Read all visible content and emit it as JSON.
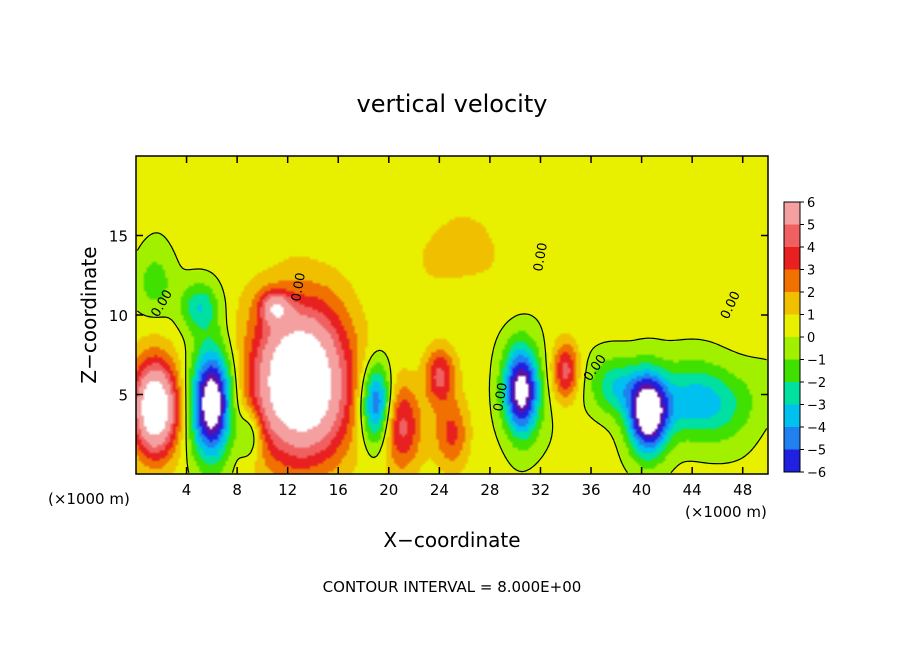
{
  "chart_data": {
    "type": "heatmap",
    "title": "vertical velocity",
    "xlabel": "X−coordinate",
    "ylabel": "Z−coordinate",
    "x_unit_left": "(×1000 m)",
    "x_unit_right": "(×1000 m)",
    "xlim": [
      0,
      50
    ],
    "ylim": [
      0,
      20
    ],
    "x_ticks": [
      4,
      8,
      12,
      16,
      20,
      24,
      28,
      32,
      36,
      40,
      44,
      48
    ],
    "y_ticks": [
      5,
      10,
      15
    ],
    "colorbar": {
      "levels": [
        6,
        5,
        4,
        3,
        2,
        1,
        0,
        -1,
        -2,
        -3,
        -4,
        -5,
        -6
      ],
      "labels": [
        "6",
        "5",
        "4",
        "3",
        "2",
        "1",
        "0",
        "−1",
        "−2",
        "−3",
        "−4",
        "−5",
        "−6"
      ],
      "colors": [
        "#f4a0a0",
        "#f06060",
        "#e82020",
        "#f07000",
        "#f0c000",
        "#e8f000",
        "#a0f000",
        "#40e000",
        "#00e0a0",
        "#00c0f0",
        "#2080f0",
        "#2020e0",
        "#6010a0"
      ]
    },
    "contour_labels": [
      "0.00",
      "0.00",
      "0.00",
      "0.00",
      "0.00"
    ],
    "footer": "CONTOUR INTERVAL = 8.000E+00",
    "features": [
      {
        "kind": "updraft",
        "x": 1.5,
        "z": 4.2,
        "rx": 1.8,
        "rz": 3.0,
        "w": 9
      },
      {
        "kind": "downdraft",
        "x": 6.0,
        "z": 4.5,
        "rx": 1.6,
        "rz": 3.4,
        "w": -9
      },
      {
        "kind": "updraft",
        "x": 13.0,
        "z": 5.8,
        "rx": 3.8,
        "rz": 4.8,
        "w": 10
      },
      {
        "kind": "downdraft",
        "x": 9.0,
        "z": 2.5,
        "rx": 1.0,
        "rz": 1.6,
        "w": -3
      },
      {
        "kind": "updraft",
        "x": 11.0,
        "z": 10.5,
        "rx": 1.2,
        "rz": 1.0,
        "w": 4
      },
      {
        "kind": "downdraft",
        "x": 19.0,
        "z": 4.5,
        "rx": 1.2,
        "rz": 2.5,
        "w": -6
      },
      {
        "kind": "updraft",
        "x": 21.0,
        "z": 3.0,
        "rx": 1.5,
        "rz": 2.8,
        "w": 4
      },
      {
        "kind": "updraft",
        "x": 24.0,
        "z": 6.2,
        "rx": 1.2,
        "rz": 1.8,
        "w": 4
      },
      {
        "kind": "updraft",
        "x": 25.0,
        "z": 2.5,
        "rx": 1.4,
        "rz": 2.2,
        "w": 3
      },
      {
        "kind": "downdraft",
        "x": 30.5,
        "z": 5.2,
        "rx": 1.4,
        "rz": 2.8,
        "w": -8
      },
      {
        "kind": "updraft",
        "x": 34.0,
        "z": 6.5,
        "rx": 1.0,
        "rz": 1.8,
        "w": 4
      },
      {
        "kind": "downdraft",
        "x": 5.0,
        "z": 10.5,
        "rx": 1.5,
        "rz": 1.5,
        "w": -3
      },
      {
        "kind": "downdraft",
        "x": 40.5,
        "z": 3.8,
        "rx": 1.5,
        "rz": 2.5,
        "w": -8
      },
      {
        "kind": "downdraft",
        "x": 44.5,
        "z": 4.5,
        "rx": 4.0,
        "rz": 2.4,
        "w": -4
      },
      {
        "kind": "downdraft",
        "x": 38.0,
        "z": 5.5,
        "rx": 2.0,
        "rz": 1.8,
        "w": -3
      },
      {
        "kind": "downdraft",
        "x": 1.5,
        "z": 12.0,
        "rx": 1.5,
        "rz": 2.0,
        "w": -2
      },
      {
        "kind": "updraft",
        "x": 25.5,
        "z": 14.0,
        "rx": 4.0,
        "rz": 2.5,
        "w": 1.2
      }
    ]
  }
}
